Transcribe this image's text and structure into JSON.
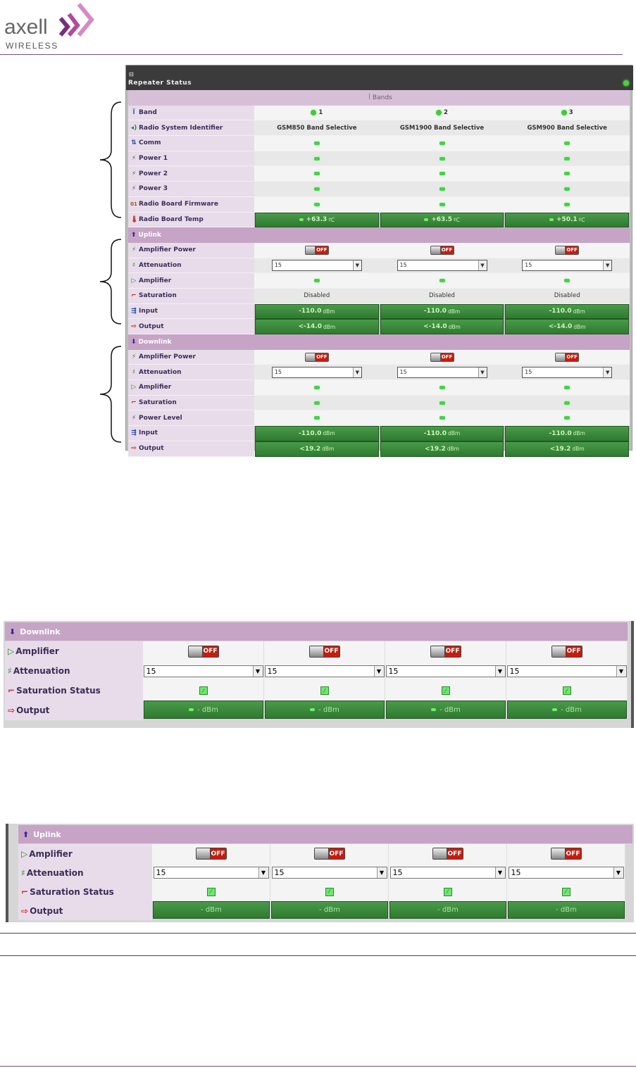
{
  "logo": {
    "text": "axell",
    "sub": "WIRELESS",
    "marks": [
      "#7a2d7c",
      "#b34a9b",
      "#d68ac4"
    ]
  },
  "panel": {
    "title": "Repeater Status",
    "bands_header": "Bands",
    "bands": [
      "1",
      "2",
      "3"
    ],
    "rsi_label": "Radio System Identifier",
    "rsi": [
      "GSM850 Band Selective",
      "GSM1900 Band Selective",
      "GSM900 Band Selective"
    ],
    "labels": {
      "band": "Band",
      "comm": "Comm",
      "power1": "Power 1",
      "power2": "Power 2",
      "power3": "Power 3",
      "firmware": "Radio Board Firmware",
      "temp": "Radio Board Temp"
    },
    "temps": [
      "+63.3",
      "+63.5",
      "+50.1"
    ],
    "temp_unit": "ºC",
    "uplink": {
      "title": "Uplink",
      "amp_power": "Amplifier Power",
      "attenuation": "Attenuation",
      "amplifier": "Amplifier",
      "saturation": "Saturation",
      "input": "Input",
      "output": "Output",
      "att_values": [
        "15",
        "15",
        "15"
      ],
      "sat_values": [
        "Disabled",
        "Disabled",
        "Disabled"
      ],
      "input_values": [
        "-110.0",
        "-110.0",
        "-110.0"
      ],
      "output_values": [
        "<-14.0",
        "<-14.0",
        "<-14.0"
      ],
      "unit": "dBm",
      "toggle": "OFF"
    },
    "downlink": {
      "title": "Downlink",
      "amp_power": "Amplifier Power",
      "attenuation": "Attenuation",
      "amplifier": "Amplifier",
      "saturation": "Saturation",
      "power_level": "Power Level",
      "input": "Input",
      "output": "Output",
      "att_values": [
        "15",
        "15",
        "15"
      ],
      "input_values": [
        "-110.0",
        "-110.0",
        "-110.0"
      ],
      "output_values": [
        "<19.2",
        "<19.2",
        "<19.2"
      ],
      "unit": "dBm",
      "toggle": "OFF"
    }
  },
  "dl_panel": {
    "title": "Downlink",
    "amplifier": "Amplifier",
    "attenuation": "Attenuation",
    "saturation": "Saturation Status",
    "output": "Output",
    "toggle": "OFF",
    "att": [
      "15",
      "15",
      "15",
      "15"
    ],
    "out": "- dBm"
  },
  "ul_panel": {
    "title": "Uplink",
    "amplifier": "Amplifier",
    "attenuation": "Attenuation",
    "saturation": "Saturation Status",
    "output": "Output",
    "toggle": "OFF",
    "att": [
      "15",
      "15",
      "15",
      "15"
    ],
    "out": "- dBm"
  }
}
